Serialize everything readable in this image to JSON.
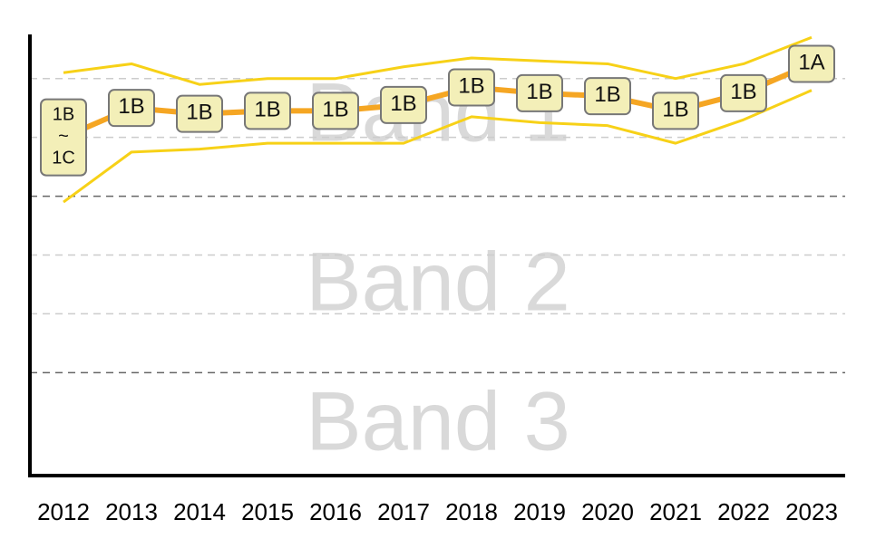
{
  "chart_data": {
    "type": "line",
    "categories": [
      "2012",
      "2013",
      "2014",
      "2015",
      "2016",
      "2017",
      "2018",
      "2019",
      "2020",
      "2021",
      "2022",
      "2023"
    ],
    "values": [
      7.0,
      7.5,
      7.4,
      7.45,
      7.45,
      7.55,
      7.85,
      7.75,
      7.7,
      7.45,
      7.75,
      8.25
    ],
    "value_labels": [
      "1B\n~\n1C",
      "1B",
      "1B",
      "1B",
      "1B",
      "1B",
      "1B",
      "1B",
      "1B",
      "1B",
      "1B",
      "1A"
    ],
    "color": "#f5a623",
    "upper_bound": {
      "color": "#f7d117",
      "values": [
        8.1,
        8.25,
        7.9,
        8.0,
        8.0,
        8.2,
        8.35,
        8.3,
        8.25,
        8.0,
        8.25,
        8.7
      ]
    },
    "lower_bound": {
      "color": "#f7d117",
      "values": [
        5.9,
        6.75,
        6.8,
        6.9,
        6.9,
        6.9,
        7.35,
        7.25,
        7.2,
        6.9,
        7.3,
        7.8
      ]
    },
    "bands": [
      {
        "label": "Band 1",
        "from": 6,
        "to": 8.75
      },
      {
        "label": "Band 2",
        "from": 3,
        "to": 6
      },
      {
        "label": "Band 3",
        "from": 1.25,
        "to": 3
      }
    ],
    "ylim": [
      1.25,
      8.75
    ],
    "yticks": [
      3,
      4,
      5,
      6,
      7,
      8
    ],
    "grid": true
  }
}
